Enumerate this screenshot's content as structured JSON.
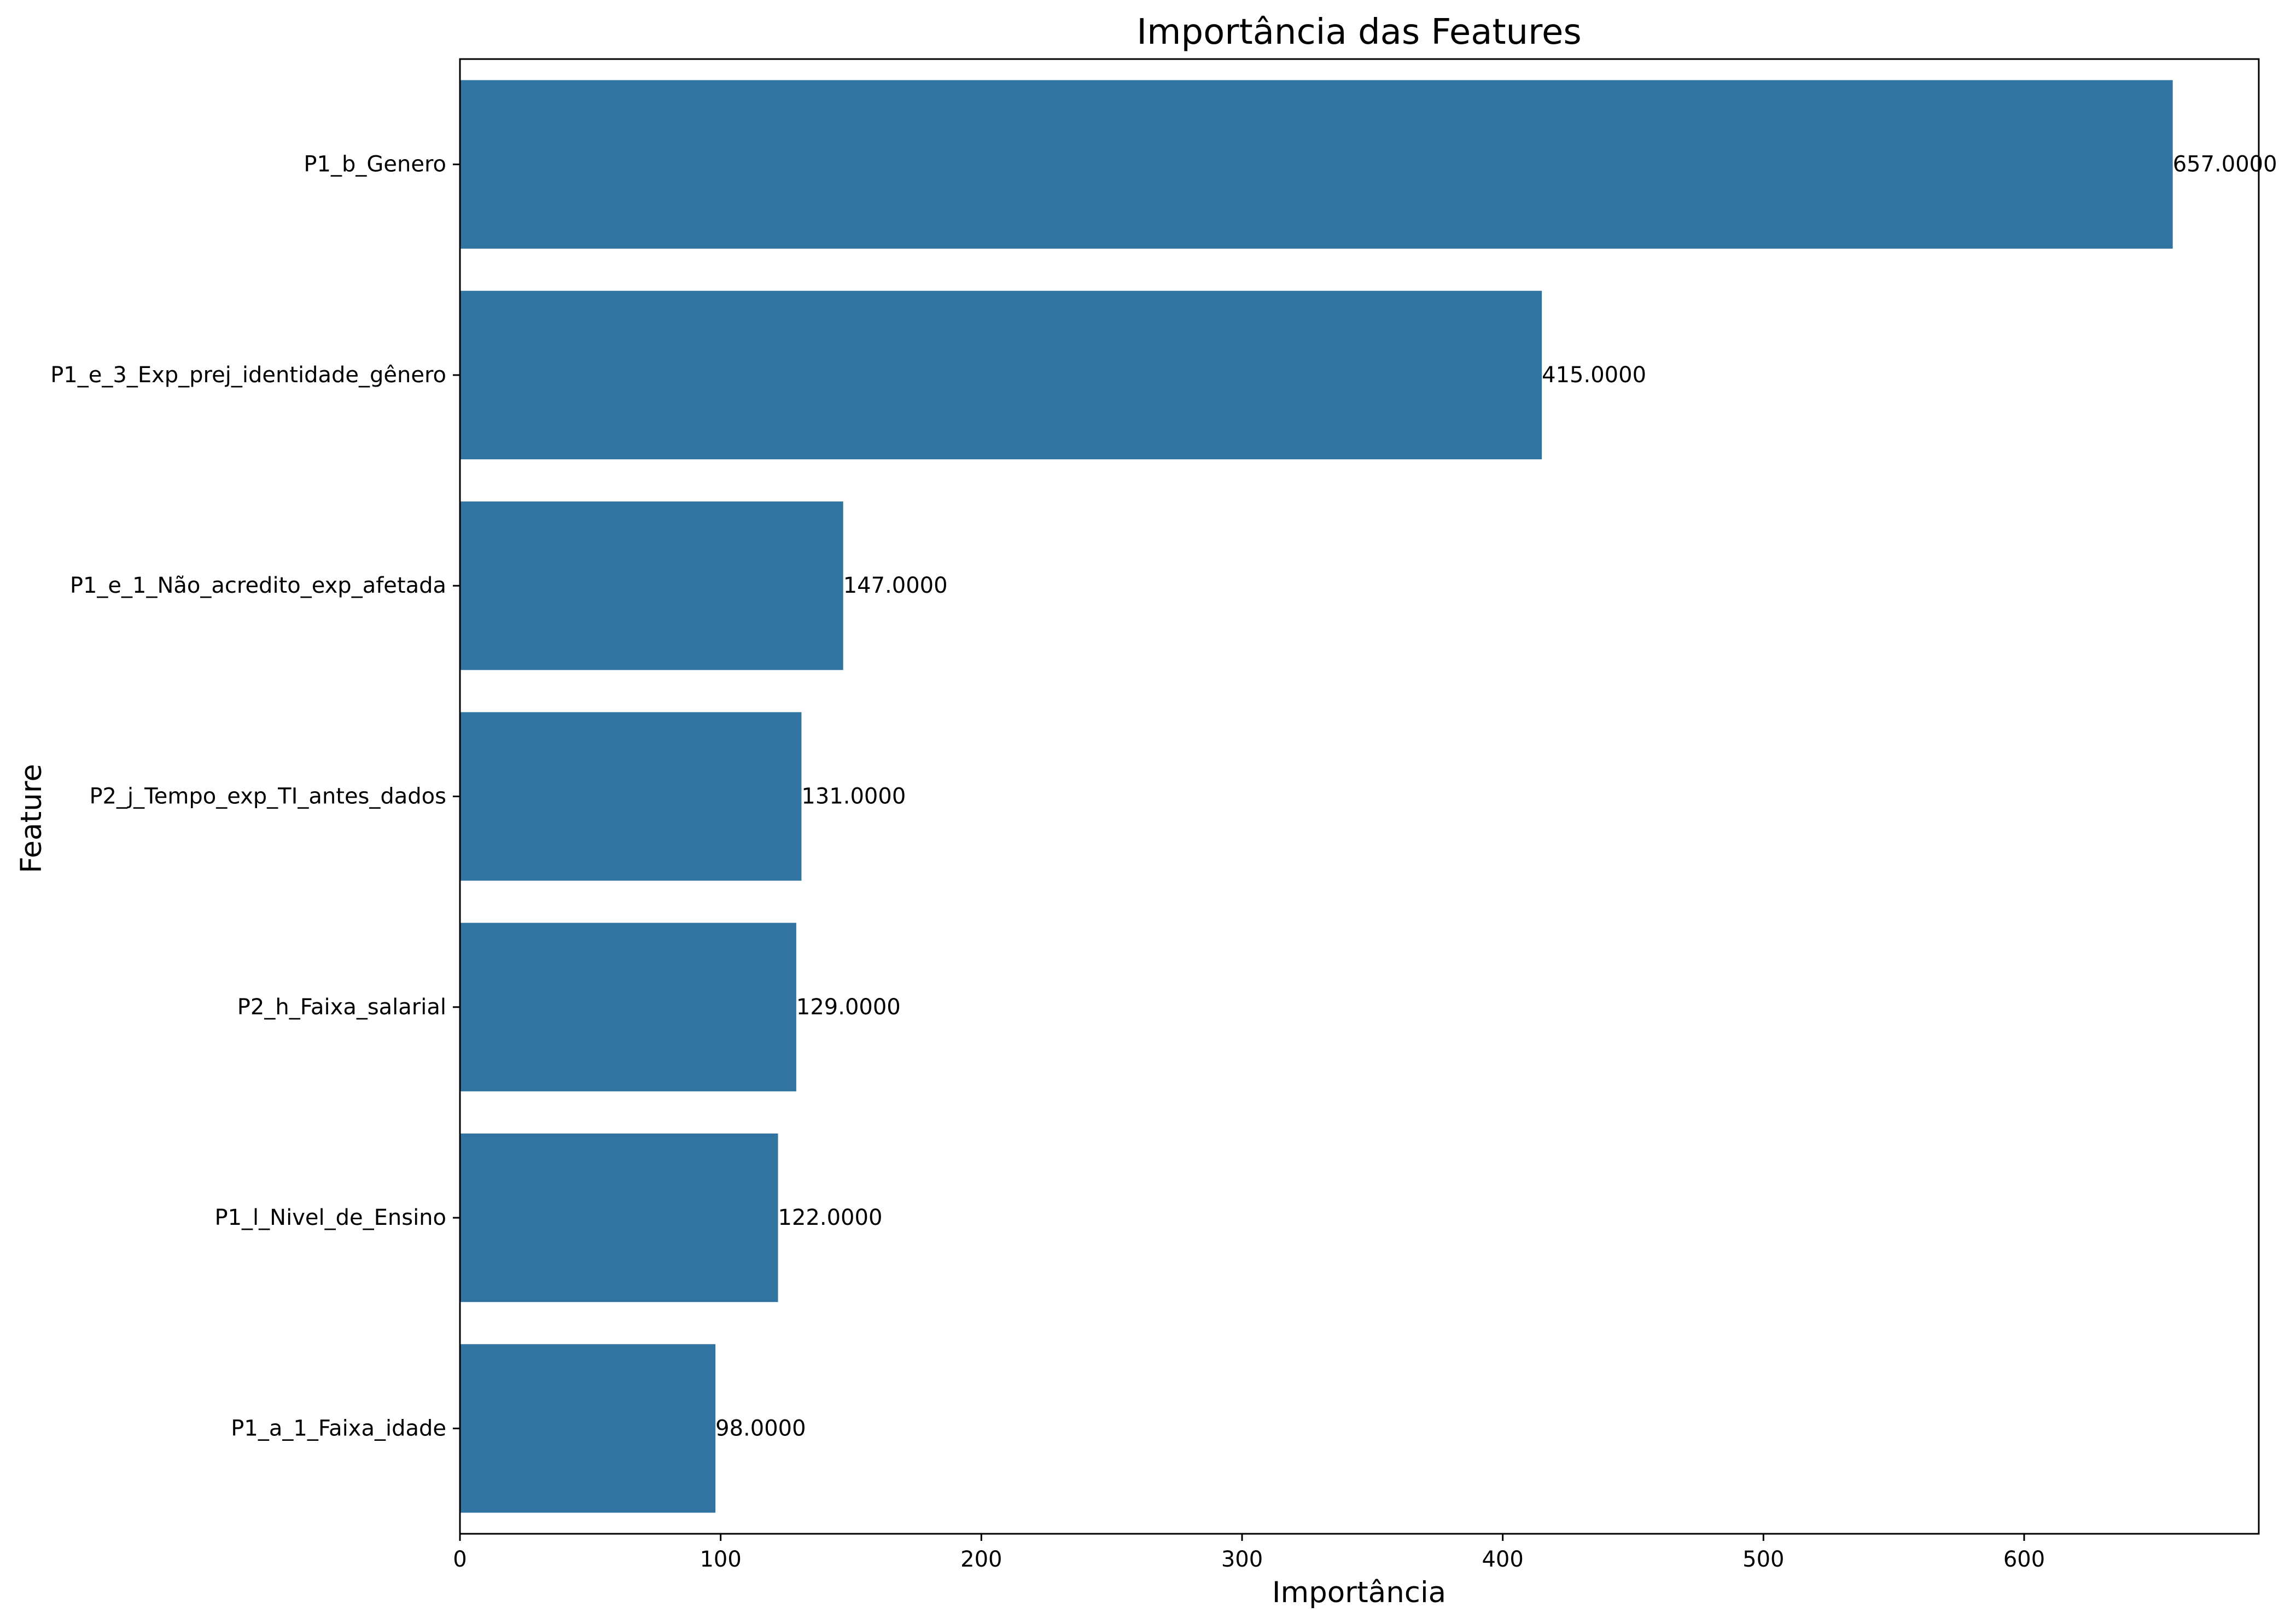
{
  "chart_data": {
    "type": "bar",
    "orientation": "horizontal",
    "title": "Importância das Features",
    "xlabel": "Importância",
    "ylabel": "Feature",
    "categories": [
      "P1_b_Genero",
      "P1_e_3_Exp_prej_identidade_gênero",
      "P1_e_1_Não_acredito_exp_afetada",
      "P2_j_Tempo_exp_TI_antes_dados",
      "P2_h_Faixa_salarial",
      "P1_l_Nivel_de_Ensino",
      "P1_a_1_Faixa_idade"
    ],
    "values": [
      657,
      415,
      147,
      131,
      129,
      122,
      98
    ],
    "value_labels": [
      "657.0000",
      "415.0000",
      "147.0000",
      "131.0000",
      "129.0000",
      "122.0000",
      "98.0000"
    ],
    "xticks": [
      0,
      100,
      200,
      300,
      400,
      500,
      600
    ],
    "xtick_labels": [
      "0",
      "100",
      "200",
      "300",
      "400",
      "500",
      "600"
    ],
    "xlim": [
      0,
      690
    ],
    "grid": false,
    "bar_color": "#3274a1"
  }
}
